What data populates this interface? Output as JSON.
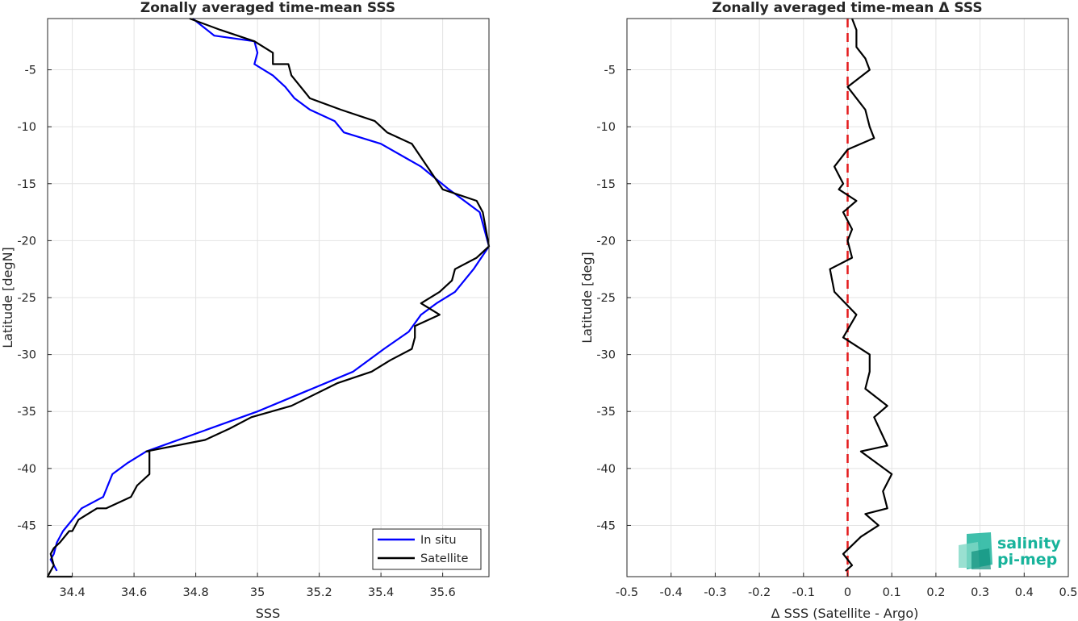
{
  "colors": {
    "in_situ": "#0000ff",
    "satellite": "#000000",
    "zero_line": "#e41a1c",
    "logo": "#17b39b"
  },
  "logo": {
    "line1": "salinity",
    "line2": "pi-mep"
  },
  "chart_data": [
    {
      "type": "line",
      "title": "Zonally averaged time-mean SSS",
      "xlabel": "SSS",
      "ylabel": "Latitude [degN]",
      "xlim": [
        34.32,
        35.75
      ],
      "ylim": [
        -49.5,
        -0.5
      ],
      "xticks": [
        "34.4",
        "34.6",
        "34.8",
        "35",
        "35.2",
        "35.4",
        "35.6"
      ],
      "xtick_values": [
        34.4,
        34.6,
        34.8,
        35.0,
        35.2,
        35.4,
        35.6
      ],
      "yticks": [
        "-5",
        "-10",
        "-15",
        "-20",
        "-25",
        "-30",
        "-35",
        "-40",
        "-45"
      ],
      "ytick_values": [
        -5,
        -10,
        -15,
        -20,
        -25,
        -30,
        -35,
        -40,
        -45
      ],
      "grid": true,
      "legend": "bottom-right",
      "series": [
        {
          "name": "In situ",
          "color_key": "in_situ",
          "x": [
            34.79,
            34.86,
            34.99,
            35.0,
            34.99,
            35.05,
            35.09,
            35.12,
            35.17,
            35.25,
            35.28,
            35.4,
            35.53,
            35.62,
            35.72,
            35.75,
            35.7,
            35.64,
            35.58,
            35.53,
            35.49,
            35.41,
            35.31,
            35.0,
            34.64,
            34.58,
            34.53,
            34.5,
            34.43,
            34.4,
            34.37,
            34.35,
            34.34,
            34.33,
            34.34,
            34.35
          ],
          "y": [
            -0.5,
            -2,
            -2.5,
            -3.5,
            -4.5,
            -5.5,
            -6.5,
            -7.5,
            -8.5,
            -9.5,
            -10.5,
            -11.5,
            -13.5,
            -15.5,
            -17.5,
            -20.5,
            -22.5,
            -24.5,
            -25.5,
            -26.5,
            -28.0,
            -29.5,
            -31.5,
            -35.0,
            -38.5,
            -39.5,
            -40.5,
            -42.5,
            -43.5,
            -44.5,
            -45.5,
            -46.5,
            -47.5,
            -48.0,
            -48.5,
            -49.0
          ]
        },
        {
          "name": "Satellite",
          "color_key": "satellite",
          "x": [
            34.78,
            34.88,
            34.99,
            35.05,
            35.05,
            35.1,
            35.11,
            35.17,
            35.27,
            35.38,
            35.42,
            35.5,
            35.6,
            35.71,
            35.73,
            35.75,
            35.71,
            35.64,
            35.63,
            35.59,
            35.53,
            35.59,
            35.51,
            35.51,
            35.5,
            35.43,
            35.37,
            35.26,
            35.11,
            34.98,
            34.91,
            34.83,
            34.64,
            34.65,
            34.65,
            34.61,
            34.59,
            34.51,
            34.48,
            34.42,
            34.4,
            34.39,
            34.36,
            34.34,
            34.33,
            34.34,
            34.32,
            34.4
          ],
          "y": [
            -0.5,
            -1.5,
            -2.5,
            -3.5,
            -4.5,
            -4.5,
            -5.5,
            -7.5,
            -8.5,
            -9.5,
            -10.5,
            -11.5,
            -15.5,
            -16.5,
            -17.5,
            -20.5,
            -21.5,
            -22.5,
            -23.5,
            -24.5,
            -25.5,
            -26.5,
            -27.5,
            -28.5,
            -29.5,
            -30.5,
            -31.5,
            -32.5,
            -34.5,
            -35.5,
            -36.5,
            -37.5,
            -38.5,
            -38.5,
            -40.5,
            -41.5,
            -42.5,
            -43.5,
            -43.5,
            -44.5,
            -45.5,
            -45.5,
            -46.5,
            -47.0,
            -47.5,
            -48.5,
            -49.5,
            -49.5
          ]
        }
      ]
    },
    {
      "type": "line",
      "title": "Zonally averaged time-mean Δ SSS",
      "xlabel": "Δ SSS (Satellite - Argo)",
      "ylabel": "Latitude [deg]",
      "xlim": [
        -0.5,
        0.5
      ],
      "ylim": [
        -49.5,
        -0.5
      ],
      "xticks": [
        "-0.5",
        "-0.4",
        "-0.3",
        "-0.2",
        "-0.1",
        "0",
        "0.1",
        "0.2",
        "0.3",
        "0.4",
        "0.5"
      ],
      "xtick_values": [
        -0.5,
        -0.4,
        -0.3,
        -0.2,
        -0.1,
        0,
        0.1,
        0.2,
        0.3,
        0.4,
        0.5
      ],
      "yticks": [
        "-5",
        "-10",
        "-15",
        "-20",
        "-25",
        "-30",
        "-35",
        "-40",
        "-45"
      ],
      "ytick_values": [
        -5,
        -10,
        -15,
        -20,
        -25,
        -30,
        -35,
        -40,
        -45
      ],
      "grid": true,
      "reference_line": {
        "x": 0,
        "color_key": "zero_line",
        "style": "dashed"
      },
      "series": [
        {
          "color_key": "satellite",
          "x": [
            0.01,
            0.02,
            0.02,
            0.04,
            0.05,
            0.0,
            0.04,
            0.05,
            0.06,
            0.0,
            -0.03,
            -0.01,
            -0.02,
            0.02,
            -0.01,
            0.01,
            0.0,
            0.01,
            -0.04,
            -0.03,
            -0.005,
            0.02,
            -0.01,
            0.05,
            0.05,
            0.04,
            0.09,
            0.06,
            0.09,
            0.03,
            0.1,
            0.08,
            0.09,
            0.04,
            0.07,
            0.03,
            -0.01,
            0.01,
            -0.005
          ],
          "y": [
            -0.5,
            -1.5,
            -3.0,
            -4.0,
            -5.0,
            -6.5,
            -8.5,
            -10.0,
            -11.0,
            -12.0,
            -13.5,
            -15.0,
            -15.5,
            -16.5,
            -17.5,
            -19.0,
            -20.0,
            -21.5,
            -22.5,
            -24.5,
            -25.5,
            -26.5,
            -28.5,
            -30.0,
            -31.5,
            -33.0,
            -34.5,
            -35.5,
            -38.0,
            -38.5,
            -40.5,
            -42.0,
            -43.5,
            -44.0,
            -45.0,
            -46.0,
            -47.5,
            -48.5,
            -49.0
          ]
        }
      ]
    }
  ]
}
